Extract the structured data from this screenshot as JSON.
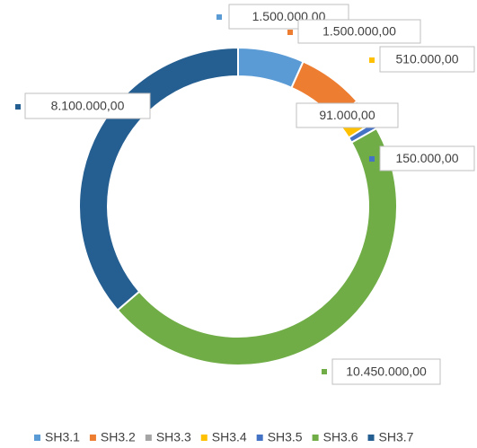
{
  "chart_data": {
    "type": "pie",
    "donut": true,
    "categories": [
      "SH3.1",
      "SH3.2",
      "SH3.3",
      "SH3.4",
      "SH3.5",
      "SH3.6",
      "SH3.7"
    ],
    "values": [
      1500000,
      1500000,
      91000,
      510000,
      150000,
      10450000,
      8100000
    ],
    "value_labels": [
      "1.500.000,00",
      "1.500.000,00",
      "91.000,00",
      "510.000,00",
      "150.000,00",
      "10.450.000,00",
      "8.100.000,00"
    ],
    "colors": [
      "#5b9bd5",
      "#ed7d31",
      "#a5a5a5",
      "#ffc000",
      "#4472c4",
      "#70ad47",
      "#255e91"
    ],
    "legend": "bottom"
  }
}
